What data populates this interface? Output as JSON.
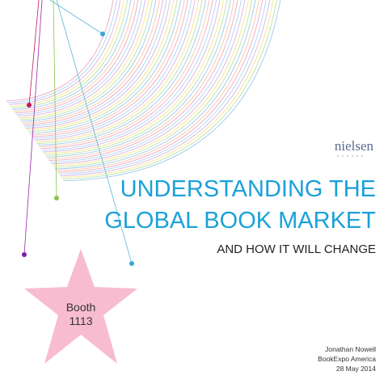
{
  "logo": "nielsen",
  "title": {
    "line1": "UNDERSTANDING THE",
    "line2": "GLOBAL BOOK MARKET"
  },
  "subtitle": "AND HOW IT WILL CHANGE",
  "booth": {
    "label": "Booth",
    "number": "1113"
  },
  "footer": {
    "name": "Jonathan Nowell",
    "event": "BookExpo America",
    "date": "28 May 2014"
  }
}
